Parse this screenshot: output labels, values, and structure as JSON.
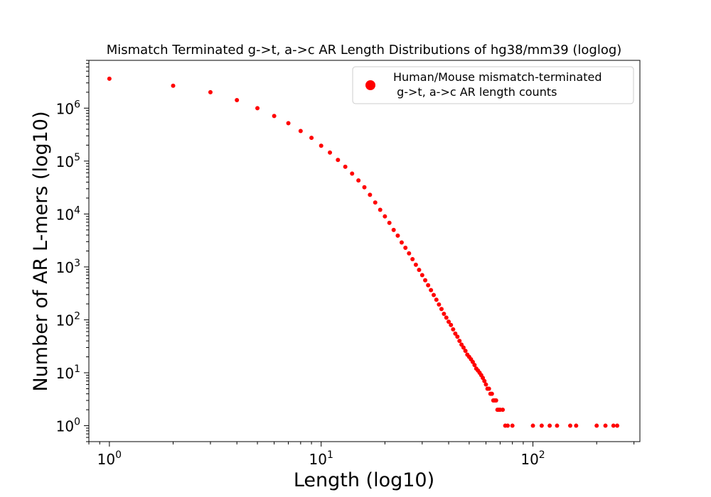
{
  "chart_data": {
    "type": "scatter",
    "title": "Mismatch Terminated g->t, a->c AR Length Distributions of hg38/mm39 (loglog)",
    "xlabel": "Length (log10)",
    "ylabel": "Number of AR L-mers (log10)",
    "xscale": "log",
    "yscale": "log",
    "xlim": [
      0.8,
      320
    ],
    "ylim": [
      0.5,
      8000000
    ],
    "grid": false,
    "legend_position": "top-right",
    "marker_color": "#ff0000",
    "x_ticks": [
      {
        "value": 1,
        "base": "10",
        "exp": "0"
      },
      {
        "value": 10,
        "base": "10",
        "exp": "1"
      },
      {
        "value": 100,
        "base": "10",
        "exp": "2"
      }
    ],
    "y_ticks": [
      {
        "value": 1,
        "base": "10",
        "exp": "0"
      },
      {
        "value": 10,
        "base": "10",
        "exp": "1"
      },
      {
        "value": 100,
        "base": "10",
        "exp": "2"
      },
      {
        "value": 1000,
        "base": "10",
        "exp": "3"
      },
      {
        "value": 10000,
        "base": "10",
        "exp": "4"
      },
      {
        "value": 100000,
        "base": "10",
        "exp": "5"
      },
      {
        "value": 1000000,
        "base": "10",
        "exp": "6"
      }
    ],
    "series": [
      {
        "name": "Human/Mouse mismatch-terminated\n g->t, a->c AR length counts",
        "points": [
          [
            1,
            3600000
          ],
          [
            2,
            2650000
          ],
          [
            3,
            2000000
          ],
          [
            4,
            1420000
          ],
          [
            5,
            1000000
          ],
          [
            6,
            710000
          ],
          [
            7,
            520000
          ],
          [
            8,
            370000
          ],
          [
            9,
            275000
          ],
          [
            10,
            195000
          ],
          [
            11,
            145000
          ],
          [
            12,
            105000
          ],
          [
            13,
            78000
          ],
          [
            14,
            58000
          ],
          [
            15,
            43000
          ],
          [
            16,
            32000
          ],
          [
            17,
            23000
          ],
          [
            18,
            16500
          ],
          [
            19,
            12000
          ],
          [
            20,
            9000
          ],
          [
            21,
            6800
          ],
          [
            22,
            5000
          ],
          [
            23,
            3900
          ],
          [
            24,
            2900
          ],
          [
            25,
            2300
          ],
          [
            26,
            1800
          ],
          [
            27,
            1400
          ],
          [
            28,
            1100
          ],
          [
            29,
            880
          ],
          [
            30,
            700
          ],
          [
            31,
            560
          ],
          [
            32,
            450
          ],
          [
            33,
            365
          ],
          [
            34,
            295
          ],
          [
            35,
            240
          ],
          [
            36,
            195
          ],
          [
            37,
            160
          ],
          [
            38,
            130
          ],
          [
            39,
            110
          ],
          [
            40,
            92
          ],
          [
            41,
            80
          ],
          [
            42,
            66
          ],
          [
            43,
            55
          ],
          [
            44,
            48
          ],
          [
            45,
            40
          ],
          [
            46,
            34
          ],
          [
            47,
            30
          ],
          [
            48,
            26
          ],
          [
            49,
            22
          ],
          [
            50,
            20
          ],
          [
            51,
            18
          ],
          [
            52,
            16
          ],
          [
            53,
            14
          ],
          [
            54,
            12
          ],
          [
            55,
            11
          ],
          [
            56,
            10
          ],
          [
            57,
            9
          ],
          [
            58,
            8
          ],
          [
            59,
            7
          ],
          [
            60,
            6
          ],
          [
            61,
            5
          ],
          [
            62,
            5
          ],
          [
            63,
            4
          ],
          [
            64,
            4
          ],
          [
            65,
            3
          ],
          [
            66,
            3
          ],
          [
            67,
            3
          ],
          [
            68,
            2
          ],
          [
            69,
            2
          ],
          [
            70,
            2
          ],
          [
            72,
            2
          ],
          [
            74,
            1
          ],
          [
            76,
            1
          ],
          [
            80,
            1
          ],
          [
            100,
            1
          ],
          [
            110,
            1
          ],
          [
            120,
            1
          ],
          [
            130,
            1
          ],
          [
            150,
            1
          ],
          [
            160,
            1
          ],
          [
            200,
            1
          ],
          [
            220,
            1
          ],
          [
            240,
            1
          ],
          [
            250,
            1
          ]
        ]
      }
    ]
  }
}
